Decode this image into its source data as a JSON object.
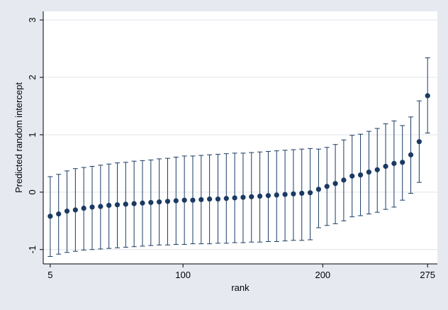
{
  "chart_data": {
    "type": "scatter",
    "title": "",
    "xlabel": "rank",
    "ylabel": "Predicted random intercept",
    "xlim": [
      0,
      282
    ],
    "ylim": [
      -1.25,
      3.15
    ],
    "x_ticks": [
      5,
      100,
      200,
      275
    ],
    "x_tick_labels": [
      "5",
      "100",
      "200",
      "275"
    ],
    "y_ticks": [
      -1,
      0,
      1,
      2,
      3
    ],
    "y_tick_labels": [
      "-1",
      "0",
      "1",
      "2",
      "3"
    ],
    "grid": true,
    "legend": false,
    "colors": {
      "background": "#e6e9f0",
      "plot_area": "#ffffff",
      "grid": "#e1e4ec",
      "marker": "#1a3a62",
      "error_bar": "#1a3a62"
    },
    "series": [
      {
        "x": [
          5,
          11,
          17,
          23,
          29,
          35,
          41,
          47,
          53,
          59,
          65,
          71,
          77,
          83,
          89,
          95,
          101,
          107,
          113,
          119,
          125,
          131,
          137,
          143,
          149,
          155,
          161,
          167,
          173,
          179,
          185,
          191,
          197,
          203,
          209,
          215,
          221,
          227,
          233,
          239,
          245,
          251,
          257,
          263,
          269,
          275
        ],
        "y": [
          -0.42,
          -0.38,
          -0.33,
          -0.31,
          -0.28,
          -0.26,
          -0.25,
          -0.23,
          -0.22,
          -0.21,
          -0.2,
          -0.19,
          -0.18,
          -0.17,
          -0.16,
          -0.15,
          -0.14,
          -0.14,
          -0.13,
          -0.12,
          -0.12,
          -0.11,
          -0.1,
          -0.09,
          -0.08,
          -0.07,
          -0.06,
          -0.05,
          -0.04,
          -0.03,
          -0.02,
          -0.01,
          0.05,
          0.1,
          0.15,
          0.21,
          0.28,
          0.3,
          0.35,
          0.39,
          0.45,
          0.5,
          0.52,
          0.65,
          0.88,
          1.68
        ],
        "lower": [
          -1.12,
          -1.08,
          -1.05,
          -1.03,
          -1.01,
          -1.0,
          -0.99,
          -0.98,
          -0.97,
          -0.96,
          -0.95,
          -0.94,
          -0.93,
          -0.92,
          -0.92,
          -0.91,
          -0.91,
          -0.9,
          -0.9,
          -0.9,
          -0.89,
          -0.89,
          -0.88,
          -0.88,
          -0.87,
          -0.87,
          -0.86,
          -0.86,
          -0.85,
          -0.84,
          -0.84,
          -0.83,
          -0.62,
          -0.58,
          -0.55,
          -0.5,
          -0.43,
          -0.41,
          -0.38,
          -0.35,
          -0.3,
          -0.26,
          -0.14,
          -0.02,
          0.17,
          1.03
        ],
        "upper": [
          0.27,
          0.31,
          0.37,
          0.41,
          0.43,
          0.45,
          0.47,
          0.49,
          0.51,
          0.52,
          0.54,
          0.55,
          0.56,
          0.58,
          0.59,
          0.61,
          0.63,
          0.63,
          0.64,
          0.65,
          0.66,
          0.67,
          0.68,
          0.68,
          0.69,
          0.7,
          0.71,
          0.72,
          0.73,
          0.74,
          0.75,
          0.76,
          0.75,
          0.78,
          0.83,
          0.91,
          0.99,
          1.01,
          1.06,
          1.11,
          1.19,
          1.24,
          1.16,
          1.31,
          1.59,
          2.34
        ]
      }
    ]
  }
}
